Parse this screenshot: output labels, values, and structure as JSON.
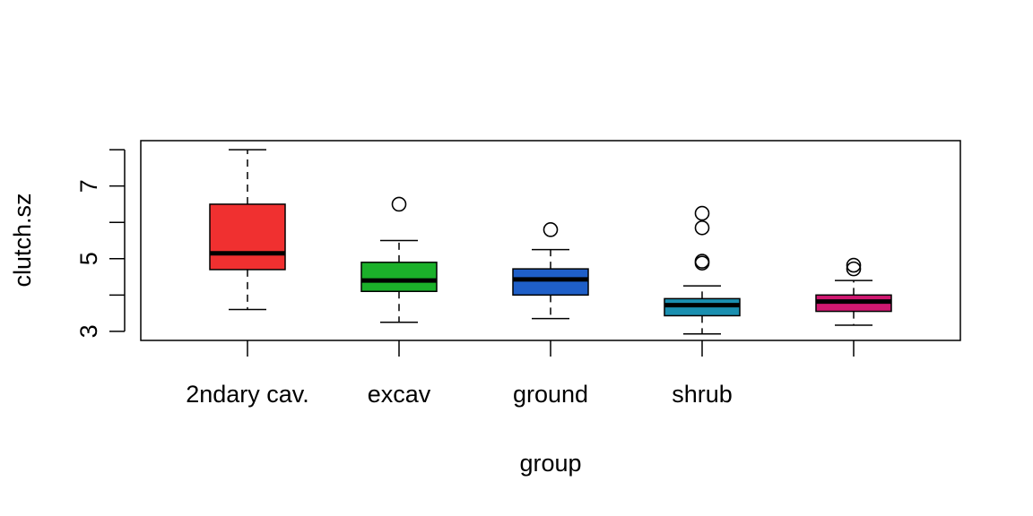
{
  "chart_data": {
    "type": "boxplot",
    "title": "",
    "xlabel": "group",
    "ylabel": "clutch.sz",
    "ylim": [
      2.75,
      8.25
    ],
    "y_ticks": [
      3,
      4,
      5,
      6,
      7,
      8
    ],
    "y_tick_labels": [
      "3",
      "",
      "5",
      "",
      "7",
      ""
    ],
    "grid": false,
    "legend": "none",
    "categories": [
      "2ndary cav.",
      "excav",
      "ground",
      "shrub",
      ""
    ],
    "boxes": [
      {
        "label": "2ndary cav.",
        "color": "#F03030",
        "whisker_low": 3.6,
        "q1": 4.7,
        "median": 5.15,
        "q3": 6.5,
        "whisker_high": 8.0,
        "outliers": []
      },
      {
        "label": "excav",
        "color": "#1BB02A",
        "whisker_low": 3.25,
        "q1": 4.1,
        "median": 4.4,
        "q3": 4.9,
        "whisker_high": 5.5,
        "outliers": [
          6.5
        ]
      },
      {
        "label": "ground",
        "color": "#1F5FC8",
        "whisker_low": 3.35,
        "q1": 4.0,
        "median": 4.43,
        "q3": 4.72,
        "whisker_high": 5.25,
        "outliers": [
          5.8
        ]
      },
      {
        "label": "shrub",
        "color": "#1A8FB0",
        "whisker_low": 2.93,
        "q1": 3.43,
        "median": 3.72,
        "q3": 3.9,
        "whisker_high": 4.25,
        "outliers": [
          4.88,
          4.93,
          5.85,
          6.25
        ]
      },
      {
        "label": "",
        "color": "#D01870",
        "whisker_low": 3.17,
        "q1": 3.55,
        "median": 3.82,
        "q3": 4.0,
        "whisker_high": 4.4,
        "outliers": [
          4.72,
          4.82
        ]
      }
    ]
  }
}
